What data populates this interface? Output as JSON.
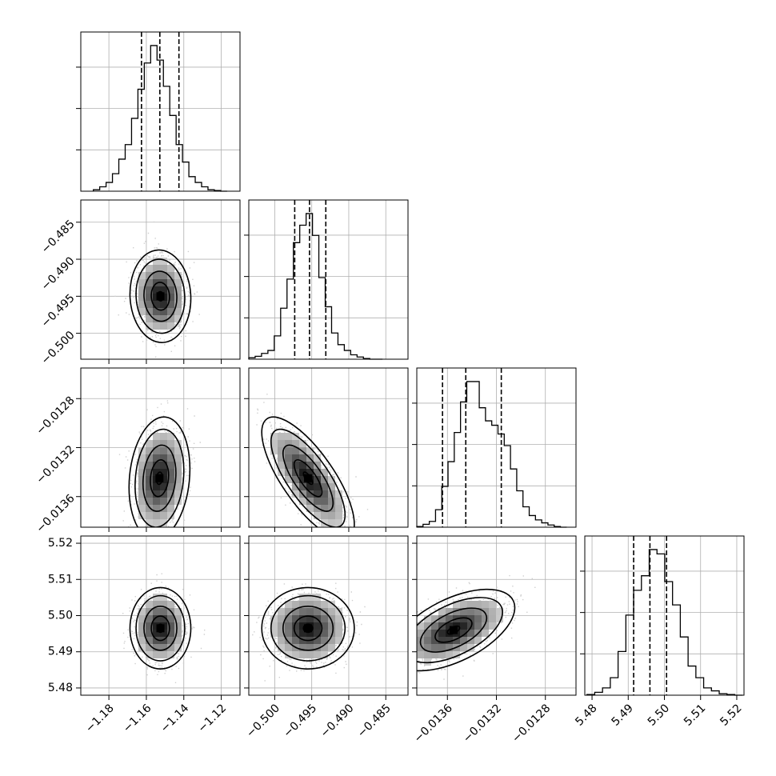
{
  "chart_data": {
    "type": "corner",
    "parameters": [
      {
        "range": [
          -1.195,
          -1.11
        ],
        "ticks": [
          -1.18,
          -1.16,
          -1.14,
          -1.12
        ],
        "tick_labels": [
          "−1.18",
          "−1.16",
          "−1.14",
          "−1.12"
        ],
        "quantiles": [
          -1.1626,
          -1.1528,
          -1.1426
        ],
        "hist": {
          "edges_start": -1.1883,
          "bin_width": 0.0034,
          "counts": [
            1,
            3,
            6,
            12,
            22,
            32,
            50,
            70,
            88,
            100,
            90,
            72,
            52,
            32,
            20,
            10,
            6,
            3,
            1,
            0.5,
            0
          ]
        }
      },
      {
        "range": [
          -0.5035,
          -0.482
        ],
        "ticks": [
          -0.5,
          -0.495,
          -0.49,
          -0.485
        ],
        "tick_labels": [
          "−0.500",
          "−0.495",
          "−0.490",
          "−0.485"
        ],
        "quantiles": [
          -0.4973,
          -0.4953,
          -0.4931
        ],
        "hist": {
          "edges_start": -0.5035,
          "bin_width": 0.00086,
          "counts": [
            1,
            2,
            4,
            6,
            16,
            35,
            55,
            80,
            92,
            100,
            85,
            56,
            36,
            18,
            10,
            6,
            3,
            1.5,
            0.5,
            0,
            0
          ]
        }
      },
      {
        "range": [
          -0.01385,
          -0.01255
        ],
        "ticks": [
          -0.0128,
          -0.0132,
          -0.0136
        ],
        "tick_labels": [
          "−0.0128",
          "−0.0132",
          "−0.0136"
        ],
        "quantiles": [
          -0.01364,
          -0.01345,
          -0.01316
        ],
        "hist": {
          "edges_start": -0.01385,
          "bin_width": 5.1e-05,
          "counts": [
            0.5,
            2,
            4,
            12,
            28,
            45,
            65,
            86,
            100,
            100,
            82,
            73,
            70,
            64,
            56,
            40,
            25,
            14,
            8,
            5,
            3,
            1.5,
            0.5,
            0
          ]
        }
      },
      {
        "range": [
          5.478,
          5.522
        ],
        "ticks": [
          5.48,
          5.49,
          5.5,
          5.51,
          5.52
        ],
        "tick_labels": [
          "5.48",
          "5.49",
          "5.50",
          "5.51",
          "5.52"
        ],
        "quantiles": [
          5.4915,
          5.496,
          5.5006
        ],
        "hist": {
          "edges_start": 5.4786,
          "bin_width": 0.00215,
          "counts": [
            0.5,
            2,
            5,
            12,
            30,
            55,
            72,
            82,
            100,
            97,
            78,
            62,
            40,
            20,
            12,
            5,
            3,
            1,
            0.5,
            0
          ]
        }
      }
    ],
    "pairs": [
      {
        "row": 1,
        "col": 0,
        "mean": [
          -1.1525,
          -0.495
        ],
        "corr": -0.05,
        "spread": [
          0.0065,
          0.0025
        ]
      },
      {
        "row": 2,
        "col": 0,
        "mean": [
          -1.153,
          -0.01345
        ],
        "corr": 0.15,
        "spread": [
          0.0065,
          0.0002
        ]
      },
      {
        "row": 2,
        "col": 1,
        "mean": [
          -0.4955,
          -0.01345
        ],
        "corr": -0.75,
        "spread": [
          0.0025,
          0.0002
        ]
      },
      {
        "row": 3,
        "col": 0,
        "mean": [
          -1.1525,
          5.4965
        ],
        "corr": 0.0,
        "spread": [
          0.0065,
          0.0045
        ]
      },
      {
        "row": 3,
        "col": 1,
        "mean": [
          -0.4955,
          5.4965
        ],
        "corr": 0.0,
        "spread": [
          0.0025,
          0.0045
        ]
      },
      {
        "row": 3,
        "col": 2,
        "mean": [
          -0.01355,
          5.496
        ],
        "corr": 0.55,
        "spread": [
          0.0002,
          0.0045
        ]
      }
    ]
  }
}
